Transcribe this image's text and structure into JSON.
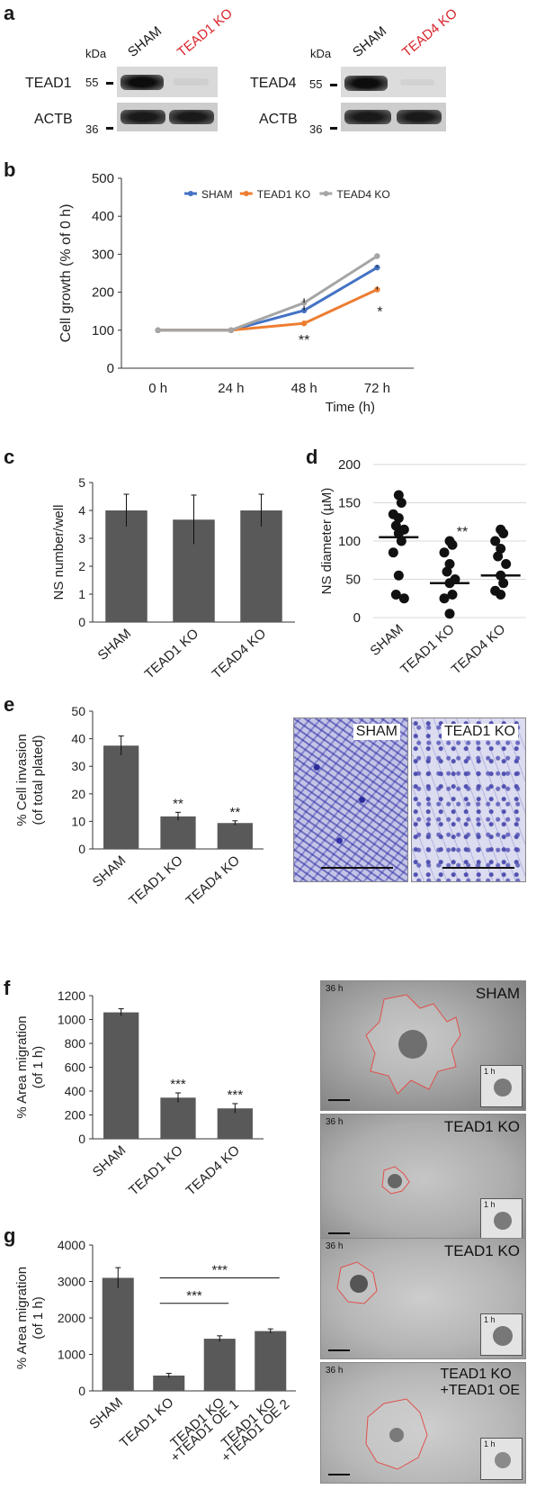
{
  "panels": {
    "a": "a",
    "b": "b",
    "c": "c",
    "d": "d",
    "e": "e",
    "f": "f",
    "g": "g"
  },
  "panel_a": {
    "left": {
      "cols": [
        "SHAM",
        "TEAD1 KO"
      ],
      "rows": [
        "TEAD1",
        "ACTB"
      ],
      "kda": "kDa",
      "mw": [
        "55",
        "36"
      ]
    },
    "right": {
      "cols": [
        "SHAM",
        "TEAD4 KO"
      ],
      "rows": [
        "TEAD4",
        "ACTB"
      ],
      "kda": "kDa",
      "mw": [
        "55",
        "36"
      ]
    },
    "ko_color": "#d8232a"
  },
  "chart_data": [
    {
      "id": "b",
      "type": "line",
      "categories": [
        "0 h",
        "24 h",
        "48 h",
        "72 h"
      ],
      "ylabel": "Cell growth (% of 0 h)",
      "xlabel": "Time (h)",
      "ylim": [
        0,
        500
      ],
      "yticks": [
        0,
        100,
        200,
        300,
        400,
        500
      ],
      "legend_position": "top",
      "series": [
        {
          "name": "SHAM",
          "color": "#4472c4",
          "values": [
            100,
            100,
            152,
            265
          ]
        },
        {
          "name": "TEAD1 KO",
          "color": "#ed7d31",
          "values": [
            100,
            100,
            118,
            207
          ]
        },
        {
          "name": "TEAD4 KO",
          "color": "#a5a5a5",
          "values": [
            100,
            100,
            172,
            295
          ]
        }
      ],
      "annotations": [
        {
          "text": "**",
          "x": "48 h"
        },
        {
          "text": "*",
          "x": "72 h"
        }
      ]
    },
    {
      "id": "c",
      "type": "bar",
      "categories": [
        "SHAM",
        "TEAD1 KO",
        "TEAD4 KO"
      ],
      "values": [
        4.0,
        3.67,
        4.0
      ],
      "errors": [
        0.58,
        0.88,
        0.58
      ],
      "ylabel": "NS number/well",
      "ylim": [
        0,
        5
      ],
      "yticks": [
        0,
        1,
        2,
        3,
        4,
        5
      ]
    },
    {
      "id": "d",
      "type": "scatter",
      "categories": [
        "SHAM",
        "TEAD1 KO",
        "TEAD4 KO"
      ],
      "points": [
        [
          160,
          150,
          135,
          130,
          120,
          115,
          110,
          100,
          85,
          55,
          30,
          25
        ],
        [
          100,
          95,
          85,
          70,
          60,
          50,
          45,
          30,
          25,
          5
        ],
        [
          115,
          110,
          100,
          90,
          80,
          70,
          55,
          45,
          35,
          30
        ]
      ],
      "means": [
        105,
        45,
        55
      ],
      "ylabel": "NS diameter (µM)",
      "ylim": [
        0,
        200
      ],
      "yticks": [
        0,
        50,
        100,
        150,
        200
      ],
      "annotations": [
        {
          "text": "**",
          "x": "TEAD1 KO"
        }
      ]
    },
    {
      "id": "e",
      "type": "bar",
      "categories": [
        "SHAM",
        "TEAD1 KO",
        "TEAD4 KO"
      ],
      "values": [
        37.5,
        11.8,
        9.4
      ],
      "errors": [
        3.5,
        1.5,
        0.8
      ],
      "ylabel": "% Cell invasion",
      "ylabel2": "(of total plated)",
      "ylim": [
        0,
        50
      ],
      "yticks": [
        0,
        10,
        20,
        30,
        40,
        50
      ],
      "annotations": [
        "",
        "**",
        "**"
      ]
    },
    {
      "id": "f",
      "type": "bar",
      "categories": [
        "SHAM",
        "TEAD1 KO",
        "TEAD4 KO"
      ],
      "values": [
        1060,
        345,
        255
      ],
      "errors": [
        30,
        40,
        40
      ],
      "ylabel": "% Area migration",
      "ylabel2": "(of 1 h)",
      "ylim": [
        0,
        1200
      ],
      "yticks": [
        0,
        200,
        400,
        600,
        800,
        1000,
        1200
      ],
      "annotations": [
        "",
        "***",
        "***"
      ]
    },
    {
      "id": "g",
      "type": "bar",
      "categories": [
        "SHAM",
        "TEAD1 KO",
        "TEAD1 KO +TEAD1 OE 1",
        "TEAD1 KO +TEAD1 OE 2"
      ],
      "cat_lines": [
        [
          "SHAM"
        ],
        [
          "TEAD1 KO"
        ],
        [
          "TEAD1 KO",
          "+TEAD1 OE 1"
        ],
        [
          "TEAD1 KO",
          "+TEAD1 OE 2"
        ]
      ],
      "values": [
        3100,
        420,
        1430,
        1640
      ],
      "errors": [
        280,
        60,
        80,
        60
      ],
      "ylabel": "% Area migration",
      "ylabel2": "(of 1 h)",
      "ylim": [
        0,
        4000
      ],
      "yticks": [
        0,
        1000,
        2000,
        3000,
        4000
      ],
      "brackets": [
        {
          "from": 1,
          "to": 2,
          "text": "***"
        },
        {
          "from": 1,
          "to": 3,
          "text": "***"
        }
      ]
    }
  ],
  "micrographs": {
    "e_left": "SHAM",
    "e_right": "TEAD1 KO",
    "f_top": {
      "time": "36 h",
      "label": "SHAM",
      "inset": "1 h"
    },
    "f_bottom": {
      "time": "36 h",
      "label": "TEAD1 KO",
      "inset": "1 h"
    },
    "g_top": {
      "time": "36 h",
      "label": "TEAD1 KO",
      "inset": "1 h"
    },
    "g_bottom": {
      "time": "36 h",
      "label": "TEAD1 KO",
      "label2": "+TEAD1 OE",
      "inset": "1 h"
    }
  }
}
